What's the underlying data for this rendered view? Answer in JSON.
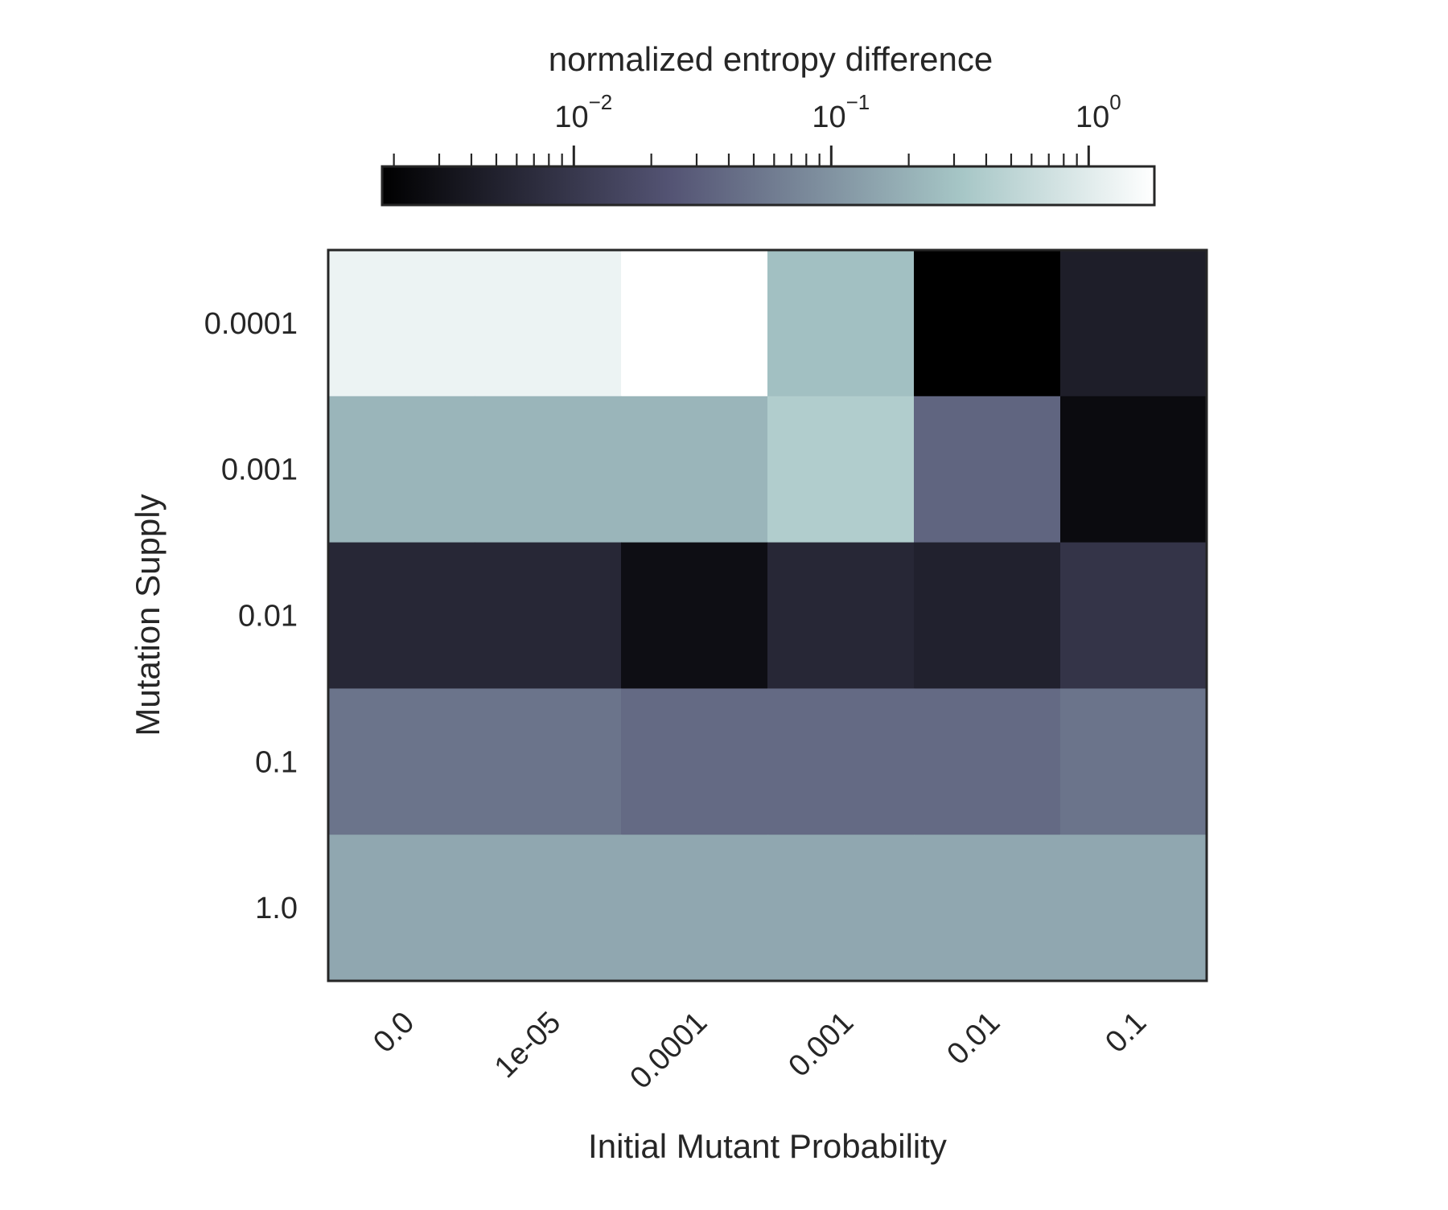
{
  "chart_data": {
    "type": "heatmap",
    "title": "",
    "xlabel": "Initial Mutant Probability",
    "ylabel": "Mutation Supply",
    "x_categories": [
      "0.0",
      "1e-05",
      "0.0001",
      "0.001",
      "0.01",
      "0.1"
    ],
    "y_categories": [
      "0.0001",
      "0.001",
      "0.01",
      "0.1",
      "1.0"
    ],
    "values": [
      [
        1.25,
        1.25,
        1.8,
        0.28,
        0.0018,
        0.0045
      ],
      [
        0.22,
        0.22,
        0.22,
        0.4,
        0.035,
        0.0025
      ],
      [
        0.006,
        0.006,
        0.0028,
        0.006,
        0.005,
        0.009
      ],
      [
        0.05,
        0.05,
        0.04,
        0.04,
        0.04,
        0.05
      ],
      [
        0.16,
        0.16,
        0.16,
        0.16,
        0.16,
        0.16
      ]
    ],
    "colorbar": {
      "label": "normalized entropy difference",
      "scale": "log",
      "range": [
        0.0018,
        1.8
      ],
      "orientation": "horizontal",
      "position": "top",
      "major_ticks": [
        {
          "value": 0.01,
          "base": "10",
          "exponent": "−2"
        },
        {
          "value": 0.1,
          "base": "10",
          "exponent": "−1"
        },
        {
          "value": 1,
          "base": "10",
          "exponent": "0"
        }
      ],
      "colormap": "bone",
      "colormap_stops": [
        {
          "t": 0.0,
          "color": "#000000"
        },
        {
          "t": 0.375,
          "color": "#545474"
        },
        {
          "t": 0.75,
          "color": "#a6c6c6"
        },
        {
          "t": 1.0,
          "color": "#ffffff"
        }
      ]
    },
    "grid": false
  }
}
